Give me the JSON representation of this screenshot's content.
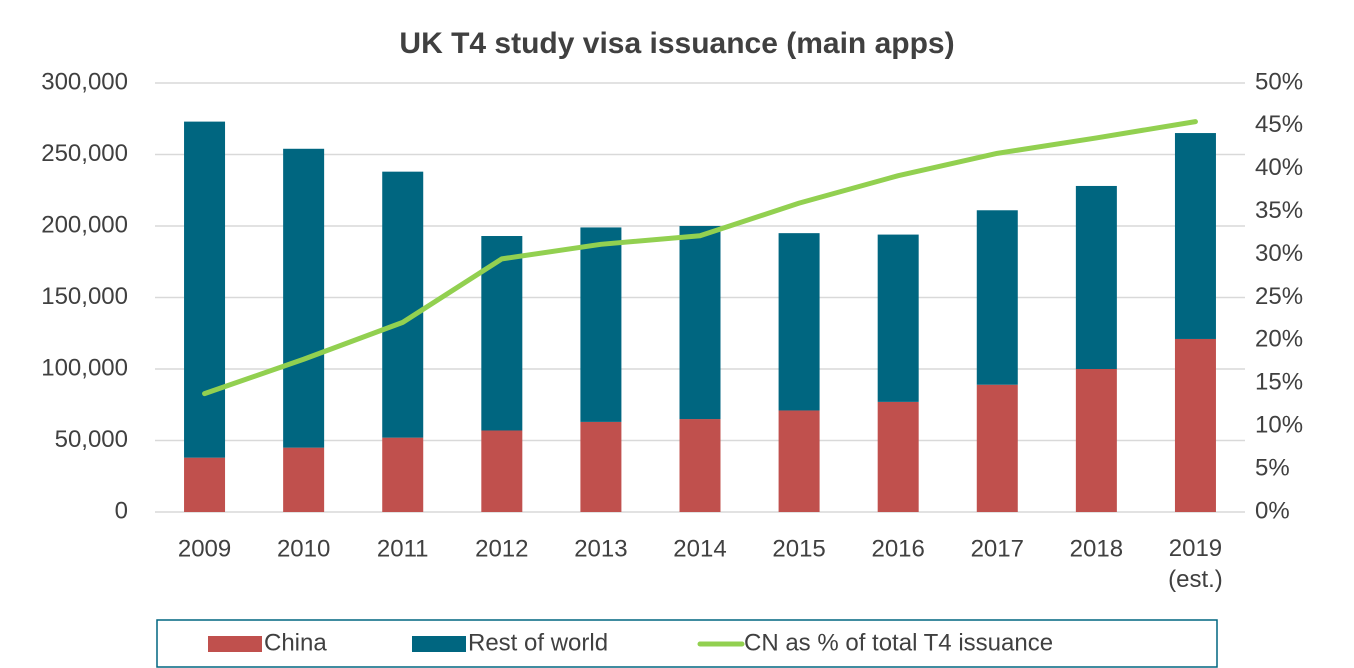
{
  "chart_data": {
    "type": "bar",
    "stacked": true,
    "title": "UK T4 study visa issuance (main apps)",
    "categories": [
      "2009",
      "2010",
      "2011",
      "2012",
      "2013",
      "2014",
      "2015",
      "2016",
      "2017",
      "2018",
      "2019\n(est.)"
    ],
    "series": [
      {
        "name": "China",
        "color": "#c0504d",
        "values": [
          38000,
          45000,
          52000,
          57000,
          63000,
          65000,
          71000,
          77000,
          89000,
          100000,
          121000
        ]
      },
      {
        "name": "Rest of world",
        "color": "#006680",
        "values": [
          235000,
          209000,
          186000,
          136000,
          136000,
          135000,
          124000,
          117000,
          122000,
          128000,
          144000
        ]
      },
      {
        "name": "CN as % of total T4 issuance",
        "color": "#92d050",
        "type": "line",
        "axis": "y2",
        "values": [
          13.8,
          17.8,
          22.1,
          29.5,
          31.2,
          32.2,
          36.0,
          39.2,
          41.8,
          43.6,
          45.5
        ]
      }
    ],
    "ylim": [
      0,
      300000
    ],
    "yticks": [
      0,
      {
        "value": 50000,
        "label": "50,000"
      },
      {
        "value": 100000,
        "label": "100,000"
      },
      {
        "value": 150000,
        "label": "150,000"
      },
      {
        "value": 200000,
        "label": "200,000"
      },
      {
        "value": 250000,
        "label": "250,000"
      },
      {
        "value": 300000,
        "label": "300,000"
      }
    ],
    "y2lim": [
      0,
      50
    ],
    "y2ticks": [
      {
        "value": 0,
        "label": "0%"
      },
      {
        "value": 5,
        "label": "5%"
      },
      {
        "value": 10,
        "label": "10%"
      },
      {
        "value": 15,
        "label": "15%"
      },
      {
        "value": 20,
        "label": "20%"
      },
      {
        "value": 25,
        "label": "25%"
      },
      {
        "value": 30,
        "label": "30%"
      },
      {
        "value": 35,
        "label": "35%"
      },
      {
        "value": 40,
        "label": "40%"
      },
      {
        "value": 45,
        "label": "45%"
      },
      {
        "value": 50,
        "label": "50%"
      }
    ],
    "grid": true,
    "legend": "bottom"
  }
}
